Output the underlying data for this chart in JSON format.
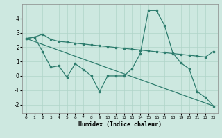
{
  "xlabel": "Humidex (Indice chaleur)",
  "bg_color": "#cde8e0",
  "grid_color": "#b0d4c8",
  "line_color": "#2e7d6e",
  "xlim": [
    -0.5,
    23.5
  ],
  "ylim": [
    -2.6,
    5.0
  ],
  "yticks": [
    -2,
    -1,
    0,
    1,
    2,
    3,
    4
  ],
  "xticks": [
    0,
    1,
    2,
    3,
    4,
    5,
    6,
    7,
    8,
    9,
    10,
    11,
    12,
    13,
    14,
    15,
    16,
    17,
    18,
    19,
    20,
    21,
    22,
    23
  ],
  "line1_x": [
    0,
    1,
    2,
    3,
    4,
    5,
    6,
    7,
    8,
    9,
    10,
    11,
    12,
    13,
    14,
    15,
    16,
    17,
    18,
    19,
    20,
    21,
    22,
    23
  ],
  "line1_y": [
    2.6,
    2.7,
    2.9,
    2.55,
    2.4,
    2.35,
    2.28,
    2.22,
    2.16,
    2.1,
    2.04,
    1.98,
    1.92,
    1.86,
    1.8,
    1.74,
    1.68,
    1.62,
    1.56,
    1.5,
    1.44,
    1.38,
    1.32,
    1.7
  ],
  "line2_x": [
    0,
    23
  ],
  "line2_y": [
    2.6,
    -2.1
  ],
  "line3_x": [
    0,
    1,
    2,
    3,
    4,
    5,
    6,
    7,
    8,
    9,
    10,
    11,
    12,
    13,
    14,
    15,
    16,
    17,
    18,
    19,
    20,
    21,
    22,
    23
  ],
  "line3_y": [
    2.6,
    2.7,
    1.7,
    0.6,
    0.7,
    -0.1,
    0.85,
    0.45,
    0.0,
    -1.1,
    0.0,
    0.0,
    0.0,
    0.5,
    1.55,
    4.55,
    4.55,
    3.5,
    1.6,
    0.9,
    0.5,
    -1.1,
    -1.5,
    -2.1
  ]
}
